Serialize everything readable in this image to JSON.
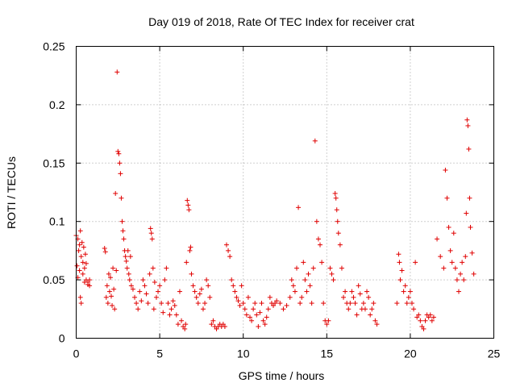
{
  "chart_data": {
    "type": "scatter",
    "title": "Day 019 of 2018, Rate Of TEC Index for receiver crat",
    "xlabel": "GPS time / hours",
    "ylabel": "ROTI / TECUs",
    "xlim": [
      0,
      25
    ],
    "ylim": [
      0,
      0.25
    ],
    "xticks": [
      0,
      5,
      10,
      15,
      20,
      25
    ],
    "yticks": [
      0,
      0.05,
      0.1,
      0.15,
      0.2,
      0.25
    ],
    "xtick_labels": [
      "0",
      "5",
      "10",
      "15",
      "20",
      "25"
    ],
    "ytick_labels": [
      "0",
      "0.05",
      "0.1",
      "0.15",
      "0.2",
      "0.25"
    ],
    "grid": true,
    "marker": "+",
    "color": "#e00000",
    "series": [
      {
        "name": "ROTI",
        "x": [
          0.0,
          0.05,
          0.1,
          0.1,
          0.15,
          0.2,
          0.2,
          0.25,
          0.25,
          0.3,
          0.3,
          0.35,
          0.4,
          0.4,
          0.45,
          0.5,
          0.5,
          0.55,
          0.6,
          0.6,
          0.7,
          0.7,
          0.8,
          0.8,
          1.7,
          1.75,
          1.8,
          1.85,
          1.9,
          1.95,
          2.0,
          2.05,
          2.1,
          2.15,
          2.2,
          2.25,
          2.3,
          2.35,
          2.4,
          2.45,
          2.5,
          2.55,
          2.6,
          2.65,
          2.7,
          2.75,
          2.8,
          2.85,
          2.9,
          2.95,
          3.0,
          3.05,
          3.1,
          3.15,
          3.2,
          3.25,
          3.3,
          3.4,
          3.5,
          3.6,
          3.7,
          3.8,
          3.9,
          4.0,
          4.1,
          4.2,
          4.3,
          4.4,
          4.45,
          4.5,
          4.55,
          4.6,
          4.65,
          4.7,
          4.8,
          4.9,
          5.0,
          5.1,
          5.2,
          5.3,
          5.4,
          5.5,
          5.6,
          5.7,
          5.8,
          5.9,
          6.0,
          6.1,
          6.2,
          6.3,
          6.4,
          6.5,
          6.55,
          6.6,
          6.65,
          6.7,
          6.75,
          6.8,
          6.85,
          6.9,
          7.0,
          7.1,
          7.2,
          7.3,
          7.4,
          7.5,
          7.6,
          7.7,
          7.8,
          7.9,
          8.0,
          8.1,
          8.2,
          8.3,
          8.4,
          8.5,
          8.6,
          8.7,
          8.8,
          8.9,
          9.0,
          9.1,
          9.2,
          9.3,
          9.4,
          9.5,
          9.6,
          9.7,
          9.8,
          9.9,
          10.0,
          10.1,
          10.2,
          10.3,
          10.4,
          10.5,
          10.6,
          10.7,
          10.8,
          10.9,
          11.0,
          11.1,
          11.2,
          11.3,
          11.4,
          11.5,
          11.6,
          11.7,
          11.8,
          11.9,
          12.0,
          12.2,
          12.4,
          12.6,
          12.8,
          12.9,
          13.0,
          13.1,
          13.2,
          13.3,
          13.4,
          13.5,
          13.6,
          13.7,
          13.8,
          13.9,
          14.0,
          14.1,
          14.2,
          14.3,
          14.4,
          14.5,
          14.6,
          14.7,
          14.8,
          14.9,
          15.0,
          15.1,
          15.2,
          15.3,
          15.4,
          15.5,
          15.55,
          15.6,
          15.65,
          15.7,
          15.8,
          15.9,
          16.0,
          16.1,
          16.2,
          16.3,
          16.4,
          16.5,
          16.6,
          16.7,
          16.8,
          16.9,
          17.0,
          17.1,
          17.2,
          17.3,
          17.4,
          17.5,
          17.6,
          17.7,
          17.8,
          17.9,
          18.0,
          19.2,
          19.3,
          19.35,
          19.4,
          19.5,
          19.6,
          19.7,
          19.8,
          19.9,
          20.0,
          20.1,
          20.2,
          20.3,
          20.4,
          20.5,
          20.6,
          20.7,
          20.8,
          20.9,
          21.0,
          21.1,
          21.2,
          21.3,
          21.4,
          21.6,
          21.8,
          22.0,
          22.1,
          22.2,
          22.3,
          22.4,
          22.5,
          22.6,
          22.7,
          22.8,
          22.9,
          23.0,
          23.1,
          23.2,
          23.3,
          23.35,
          23.4,
          23.45,
          23.5,
          23.55,
          23.6,
          23.7,
          23.8
        ],
        "y": [
          0.088,
          0.062,
          0.085,
          0.052,
          0.075,
          0.08,
          0.058,
          0.092,
          0.035,
          0.07,
          0.03,
          0.082,
          0.065,
          0.055,
          0.078,
          0.06,
          0.048,
          0.072,
          0.064,
          0.05,
          0.046,
          0.048,
          0.05,
          0.045,
          0.077,
          0.074,
          0.035,
          0.045,
          0.03,
          0.055,
          0.04,
          0.052,
          0.036,
          0.028,
          0.06,
          0.042,
          0.025,
          0.124,
          0.058,
          0.228,
          0.16,
          0.158,
          0.15,
          0.141,
          0.12,
          0.1,
          0.092,
          0.085,
          0.075,
          0.07,
          0.066,
          0.06,
          0.075,
          0.055,
          0.05,
          0.07,
          0.045,
          0.042,
          0.035,
          0.03,
          0.025,
          0.04,
          0.032,
          0.05,
          0.045,
          0.038,
          0.03,
          0.055,
          0.094,
          0.09,
          0.085,
          0.06,
          0.025,
          0.048,
          0.035,
          0.04,
          0.045,
          0.03,
          0.022,
          0.05,
          0.06,
          0.03,
          0.02,
          0.025,
          0.032,
          0.028,
          0.02,
          0.012,
          0.04,
          0.015,
          0.01,
          0.008,
          0.012,
          0.065,
          0.118,
          0.114,
          0.11,
          0.075,
          0.078,
          0.055,
          0.045,
          0.04,
          0.035,
          0.03,
          0.038,
          0.042,
          0.025,
          0.03,
          0.05,
          0.045,
          0.035,
          0.012,
          0.015,
          0.01,
          0.008,
          0.01,
          0.012,
          0.01,
          0.012,
          0.01,
          0.08,
          0.075,
          0.07,
          0.05,
          0.045,
          0.04,
          0.035,
          0.032,
          0.028,
          0.045,
          0.03,
          0.025,
          0.02,
          0.035,
          0.018,
          0.015,
          0.025,
          0.03,
          0.02,
          0.01,
          0.022,
          0.03,
          0.015,
          0.012,
          0.018,
          0.025,
          0.035,
          0.03,
          0.028,
          0.03,
          0.032,
          0.03,
          0.025,
          0.028,
          0.035,
          0.05,
          0.045,
          0.04,
          0.06,
          0.112,
          0.03,
          0.035,
          0.065,
          0.05,
          0.04,
          0.055,
          0.045,
          0.03,
          0.06,
          0.169,
          0.1,
          0.085,
          0.08,
          0.065,
          0.03,
          0.015,
          0.012,
          0.015,
          0.06,
          0.055,
          0.05,
          0.124,
          0.12,
          0.11,
          0.1,
          0.09,
          0.08,
          0.06,
          0.035,
          0.04,
          0.03,
          0.025,
          0.03,
          0.04,
          0.035,
          0.03,
          0.02,
          0.045,
          0.038,
          0.025,
          0.03,
          0.025,
          0.04,
          0.035,
          0.02,
          0.025,
          0.03,
          0.015,
          0.012,
          0.03,
          0.072,
          0.065,
          0.05,
          0.058,
          0.04,
          0.045,
          0.03,
          0.035,
          0.04,
          0.03,
          0.025,
          0.065,
          0.018,
          0.02,
          0.015,
          0.01,
          0.008,
          0.015,
          0.02,
          0.018,
          0.02,
          0.015,
          0.018,
          0.085,
          0.07,
          0.06,
          0.144,
          0.12,
          0.095,
          0.075,
          0.065,
          0.09,
          0.06,
          0.05,
          0.04,
          0.055,
          0.065,
          0.05,
          0.07,
          0.107,
          0.187,
          0.182,
          0.162,
          0.12,
          0.095,
          0.073,
          0.055
        ]
      }
    ],
    "colors": {
      "marker": "#e00000",
      "grid": "#a0a0a0",
      "axis": "#000000",
      "background": "#ffffff"
    }
  }
}
